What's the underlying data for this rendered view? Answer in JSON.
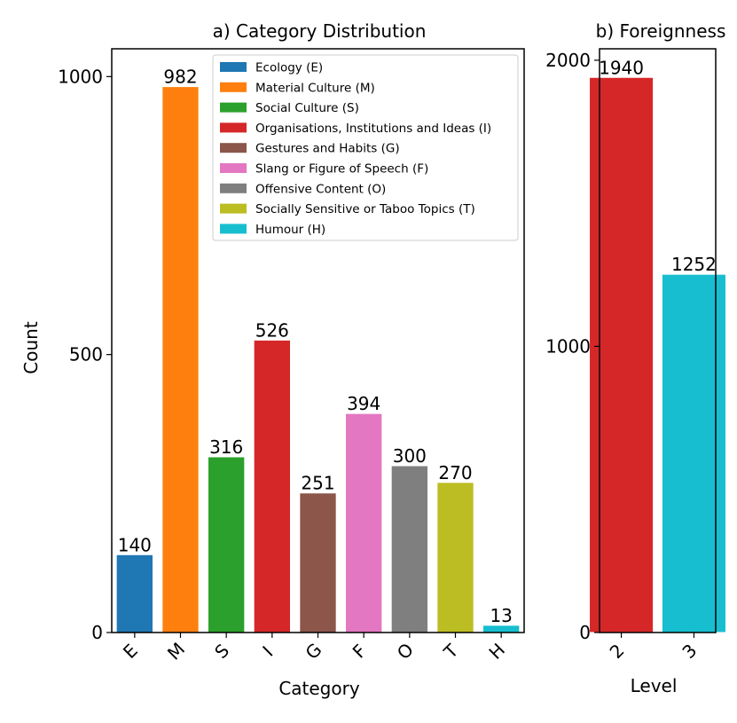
{
  "chart_data": [
    {
      "type": "bar",
      "title": "a) Category Distribution",
      "xlabel": "Category",
      "ylabel": "Count",
      "ylim": [
        0,
        1050
      ],
      "yticks": [
        0,
        500,
        1000
      ],
      "grid": false,
      "legend_position": "top-right",
      "categories": [
        "E",
        "M",
        "S",
        "I",
        "G",
        "F",
        "O",
        "T",
        "H"
      ],
      "values": [
        140,
        982,
        316,
        526,
        251,
        394,
        300,
        270,
        13
      ],
      "colors": [
        "#1f77b4",
        "#ff7f0e",
        "#2ca02c",
        "#d62728",
        "#8c564b",
        "#e377c2",
        "#7f7f7f",
        "#bcbd22",
        "#17becf"
      ],
      "legend": [
        "Ecology (E)",
        "Material Culture (M)",
        "Social Culture (S)",
        "Organisations, Institutions and Ideas (I)",
        "Gestures and Habits (G)",
        "Slang or Figure of Speech (F)",
        "Offensive Content (O)",
        "Socially Sensitive or Taboo Topics (T)",
        "Humour (H)"
      ]
    },
    {
      "type": "bar",
      "title": "b) Foreignness",
      "xlabel": "Level",
      "ylabel": "",
      "ylim": [
        0,
        2040
      ],
      "yticks": [
        0,
        1000,
        2000
      ],
      "grid": false,
      "categories": [
        "2",
        "3"
      ],
      "values": [
        1940,
        1252
      ],
      "colors": [
        "#d62728",
        "#17becf"
      ]
    }
  ]
}
